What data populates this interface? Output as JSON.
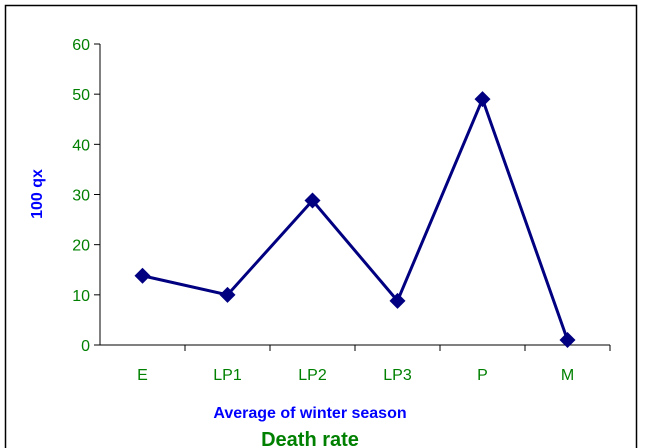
{
  "chart_data": {
    "type": "line",
    "title": "Death rate",
    "x_label": "Average of winter season",
    "y_label": "100 qx",
    "categories": [
      "E",
      "LP1",
      "LP2",
      "LP3",
      "P",
      "M"
    ],
    "series": [
      {
        "name": "Death rate",
        "color": "#000080",
        "values": [
          13.8,
          10,
          28.8,
          8.8,
          49,
          1
        ]
      }
    ],
    "ylim": [
      0,
      60
    ],
    "yticks": [
      0,
      10,
      20,
      30,
      40,
      50,
      60
    ],
    "grid": false,
    "label_color": "#008000",
    "axis_title_color": "#0000ff"
  }
}
